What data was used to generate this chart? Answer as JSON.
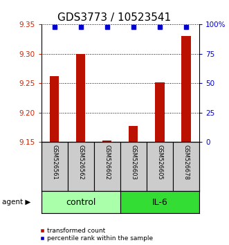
{
  "title": "GDS3773 / 10523541",
  "samples": [
    "GSM526561",
    "GSM526562",
    "GSM526602",
    "GSM526603",
    "GSM526605",
    "GSM526678"
  ],
  "groups": [
    "control",
    "control",
    "control",
    "IL-6",
    "IL-6",
    "IL-6"
  ],
  "bar_values": [
    9.262,
    9.3,
    9.153,
    9.178,
    9.252,
    9.33
  ],
  "percentile_values": [
    98,
    98,
    98,
    98,
    98,
    98
  ],
  "ylim": [
    9.15,
    9.35
  ],
  "yticks": [
    9.15,
    9.2,
    9.25,
    9.3,
    9.35
  ],
  "y2lim": [
    0,
    100
  ],
  "y2ticks": [
    0,
    25,
    50,
    75,
    100
  ],
  "y2ticklabels": [
    "0",
    "25",
    "50",
    "75",
    "100%"
  ],
  "bar_color": "#bb1100",
  "dot_color": "#0000cc",
  "control_color": "#aaffaa",
  "il6_color": "#33dd33",
  "ylabel_color": "#cc2200",
  "y2label_color": "#0000cc",
  "sample_bg_color": "#cccccc",
  "group_label_fontsize": 9,
  "title_fontsize": 11,
  "bar_width": 0.35
}
